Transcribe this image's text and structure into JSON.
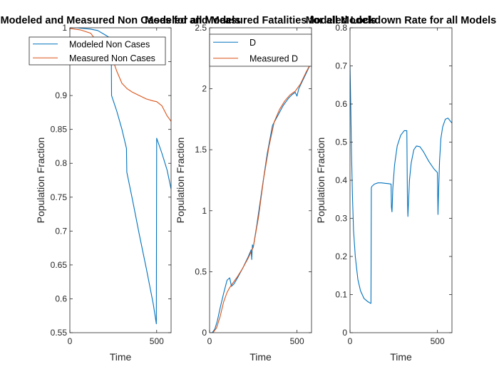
{
  "chart_data": [
    {
      "type": "line",
      "title": "Modeled and Measured Non Cases for all Models",
      "xlabel": "Time",
      "ylabel": "Population Fraction",
      "xlim": [
        0,
        583
      ],
      "ylim": [
        0.55,
        1
      ],
      "xticks": [
        0,
        500
      ],
      "xtick_labels": [
        "0",
        "500"
      ],
      "yticks": [
        0.55,
        0.6,
        0.65,
        0.7,
        0.75,
        0.8,
        0.85,
        0.9,
        0.95,
        1
      ],
      "ytick_labels": [
        "0.55",
        "0.6",
        "0.65",
        "0.7",
        "0.75",
        "0.8",
        "0.85",
        "0.9",
        "0.95",
        "1"
      ],
      "legend_position": "top",
      "grid": false,
      "series": [
        {
          "name": "Modeled Non Cases",
          "color": "#0072BD",
          "x": [
            0,
            40,
            80,
            120,
            160,
            200,
            238,
            240,
            270,
            300,
            326,
            328,
            360,
            400,
            440,
            480,
            498,
            500,
            530,
            560,
            583
          ],
          "y": [
            1.0,
            1.0,
            0.999,
            0.998,
            0.996,
            0.99,
            0.984,
            0.9,
            0.877,
            0.85,
            0.822,
            0.787,
            0.747,
            0.695,
            0.645,
            0.593,
            0.563,
            0.837,
            0.815,
            0.79,
            0.762
          ]
        },
        {
          "name": "Measured Non Cases",
          "color": "#D95319",
          "x": [
            0,
            60,
            120,
            160,
            200,
            240,
            270,
            300,
            330,
            360,
            400,
            440,
            480,
            500,
            530,
            560,
            583
          ],
          "y": [
            0.999,
            0.997,
            0.992,
            0.978,
            0.968,
            0.958,
            0.936,
            0.918,
            0.91,
            0.905,
            0.9,
            0.895,
            0.892,
            0.891,
            0.885,
            0.87,
            0.862
          ]
        }
      ]
    },
    {
      "type": "line",
      "title": "Modeled and Measured Fatalities for all Models",
      "xlabel": "Time",
      "ylabel": "Population Fraction",
      "xlim": [
        0,
        583
      ],
      "ylim": [
        0,
        2.5
      ],
      "xticks": [
        0,
        500
      ],
      "xtick_labels": [
        "0",
        "500"
      ],
      "yticks": [
        0,
        0.5,
        1,
        1.5,
        2,
        2.5
      ],
      "ytick_labels": [
        "0",
        "0.5",
        "1",
        "1.5",
        "2",
        "2.5"
      ],
      "legend_position": "top-left",
      "grid": false,
      "series": [
        {
          "name": "D",
          "color": "#0072BD",
          "x": [
            0,
            15,
            30,
            45,
            60,
            80,
            100,
            115,
            125,
            140,
            160,
            190,
            220,
            238,
            241,
            245,
            250,
            270,
            300,
            330,
            360,
            390,
            420,
            450,
            470,
            490,
            500,
            510,
            530,
            560,
            583
          ],
          "y": [
            0.0,
            0.0,
            0.03,
            0.1,
            0.2,
            0.32,
            0.43,
            0.45,
            0.38,
            0.4,
            0.45,
            0.53,
            0.62,
            0.68,
            0.6,
            0.72,
            0.7,
            0.88,
            1.18,
            1.47,
            1.7,
            1.78,
            1.86,
            1.92,
            1.95,
            1.97,
            1.94,
            2.0,
            2.06,
            2.15,
            2.22
          ]
        },
        {
          "name": "Measured D",
          "color": "#D95319",
          "x": [
            0,
            20,
            40,
            60,
            80,
            100,
            115,
            130,
            160,
            190,
            220,
            250,
            280,
            310,
            340,
            370,
            400,
            430,
            460,
            490,
            520,
            550,
            583
          ],
          "y": [
            0.0,
            0.0,
            0.04,
            0.13,
            0.25,
            0.33,
            0.37,
            0.4,
            0.46,
            0.53,
            0.61,
            0.7,
            0.95,
            1.27,
            1.53,
            1.73,
            1.83,
            1.9,
            1.95,
            1.98,
            2.04,
            2.13,
            2.22
          ]
        }
      ]
    },
    {
      "type": "line",
      "title": "Modeled Lockdown Rate for all Models",
      "xlabel": "Time",
      "ylabel": "Population Fraction",
      "xlim": [
        0,
        583
      ],
      "ylim": [
        0,
        0.8
      ],
      "xticks": [
        0,
        500
      ],
      "xtick_labels": [
        "0",
        "500"
      ],
      "yticks": [
        0,
        0.1,
        0.2,
        0.3,
        0.4,
        0.5,
        0.6,
        0.7,
        0.8
      ],
      "ytick_labels": [
        "0",
        "0.1",
        "0.2",
        "0.3",
        "0.4",
        "0.5",
        "0.6",
        "0.7",
        "0.8"
      ],
      "grid": false,
      "series": [
        {
          "color": "#0072BD",
          "x": [
            0,
            4,
            8,
            14,
            20,
            30,
            45,
            60,
            80,
            100,
            118,
            120,
            122,
            125,
            140,
            160,
            180,
            200,
            220,
            235,
            237,
            240,
            245,
            255,
            270,
            290,
            310,
            325,
            328,
            331,
            340,
            350,
            365,
            380,
            400,
            420,
            450,
            480,
            500,
            503,
            506,
            512,
            520,
            530,
            545,
            560,
            583
          ],
          "y": [
            0.7,
            0.6,
            0.48,
            0.36,
            0.27,
            0.2,
            0.14,
            0.11,
            0.09,
            0.082,
            0.077,
            0.077,
            0.38,
            0.384,
            0.39,
            0.393,
            0.393,
            0.392,
            0.391,
            0.39,
            0.33,
            0.317,
            0.38,
            0.44,
            0.49,
            0.518,
            0.53,
            0.53,
            0.36,
            0.305,
            0.4,
            0.445,
            0.48,
            0.49,
            0.488,
            0.475,
            0.45,
            0.43,
            0.42,
            0.31,
            0.36,
            0.45,
            0.51,
            0.54,
            0.56,
            0.563,
            0.55
          ]
        }
      ]
    }
  ]
}
